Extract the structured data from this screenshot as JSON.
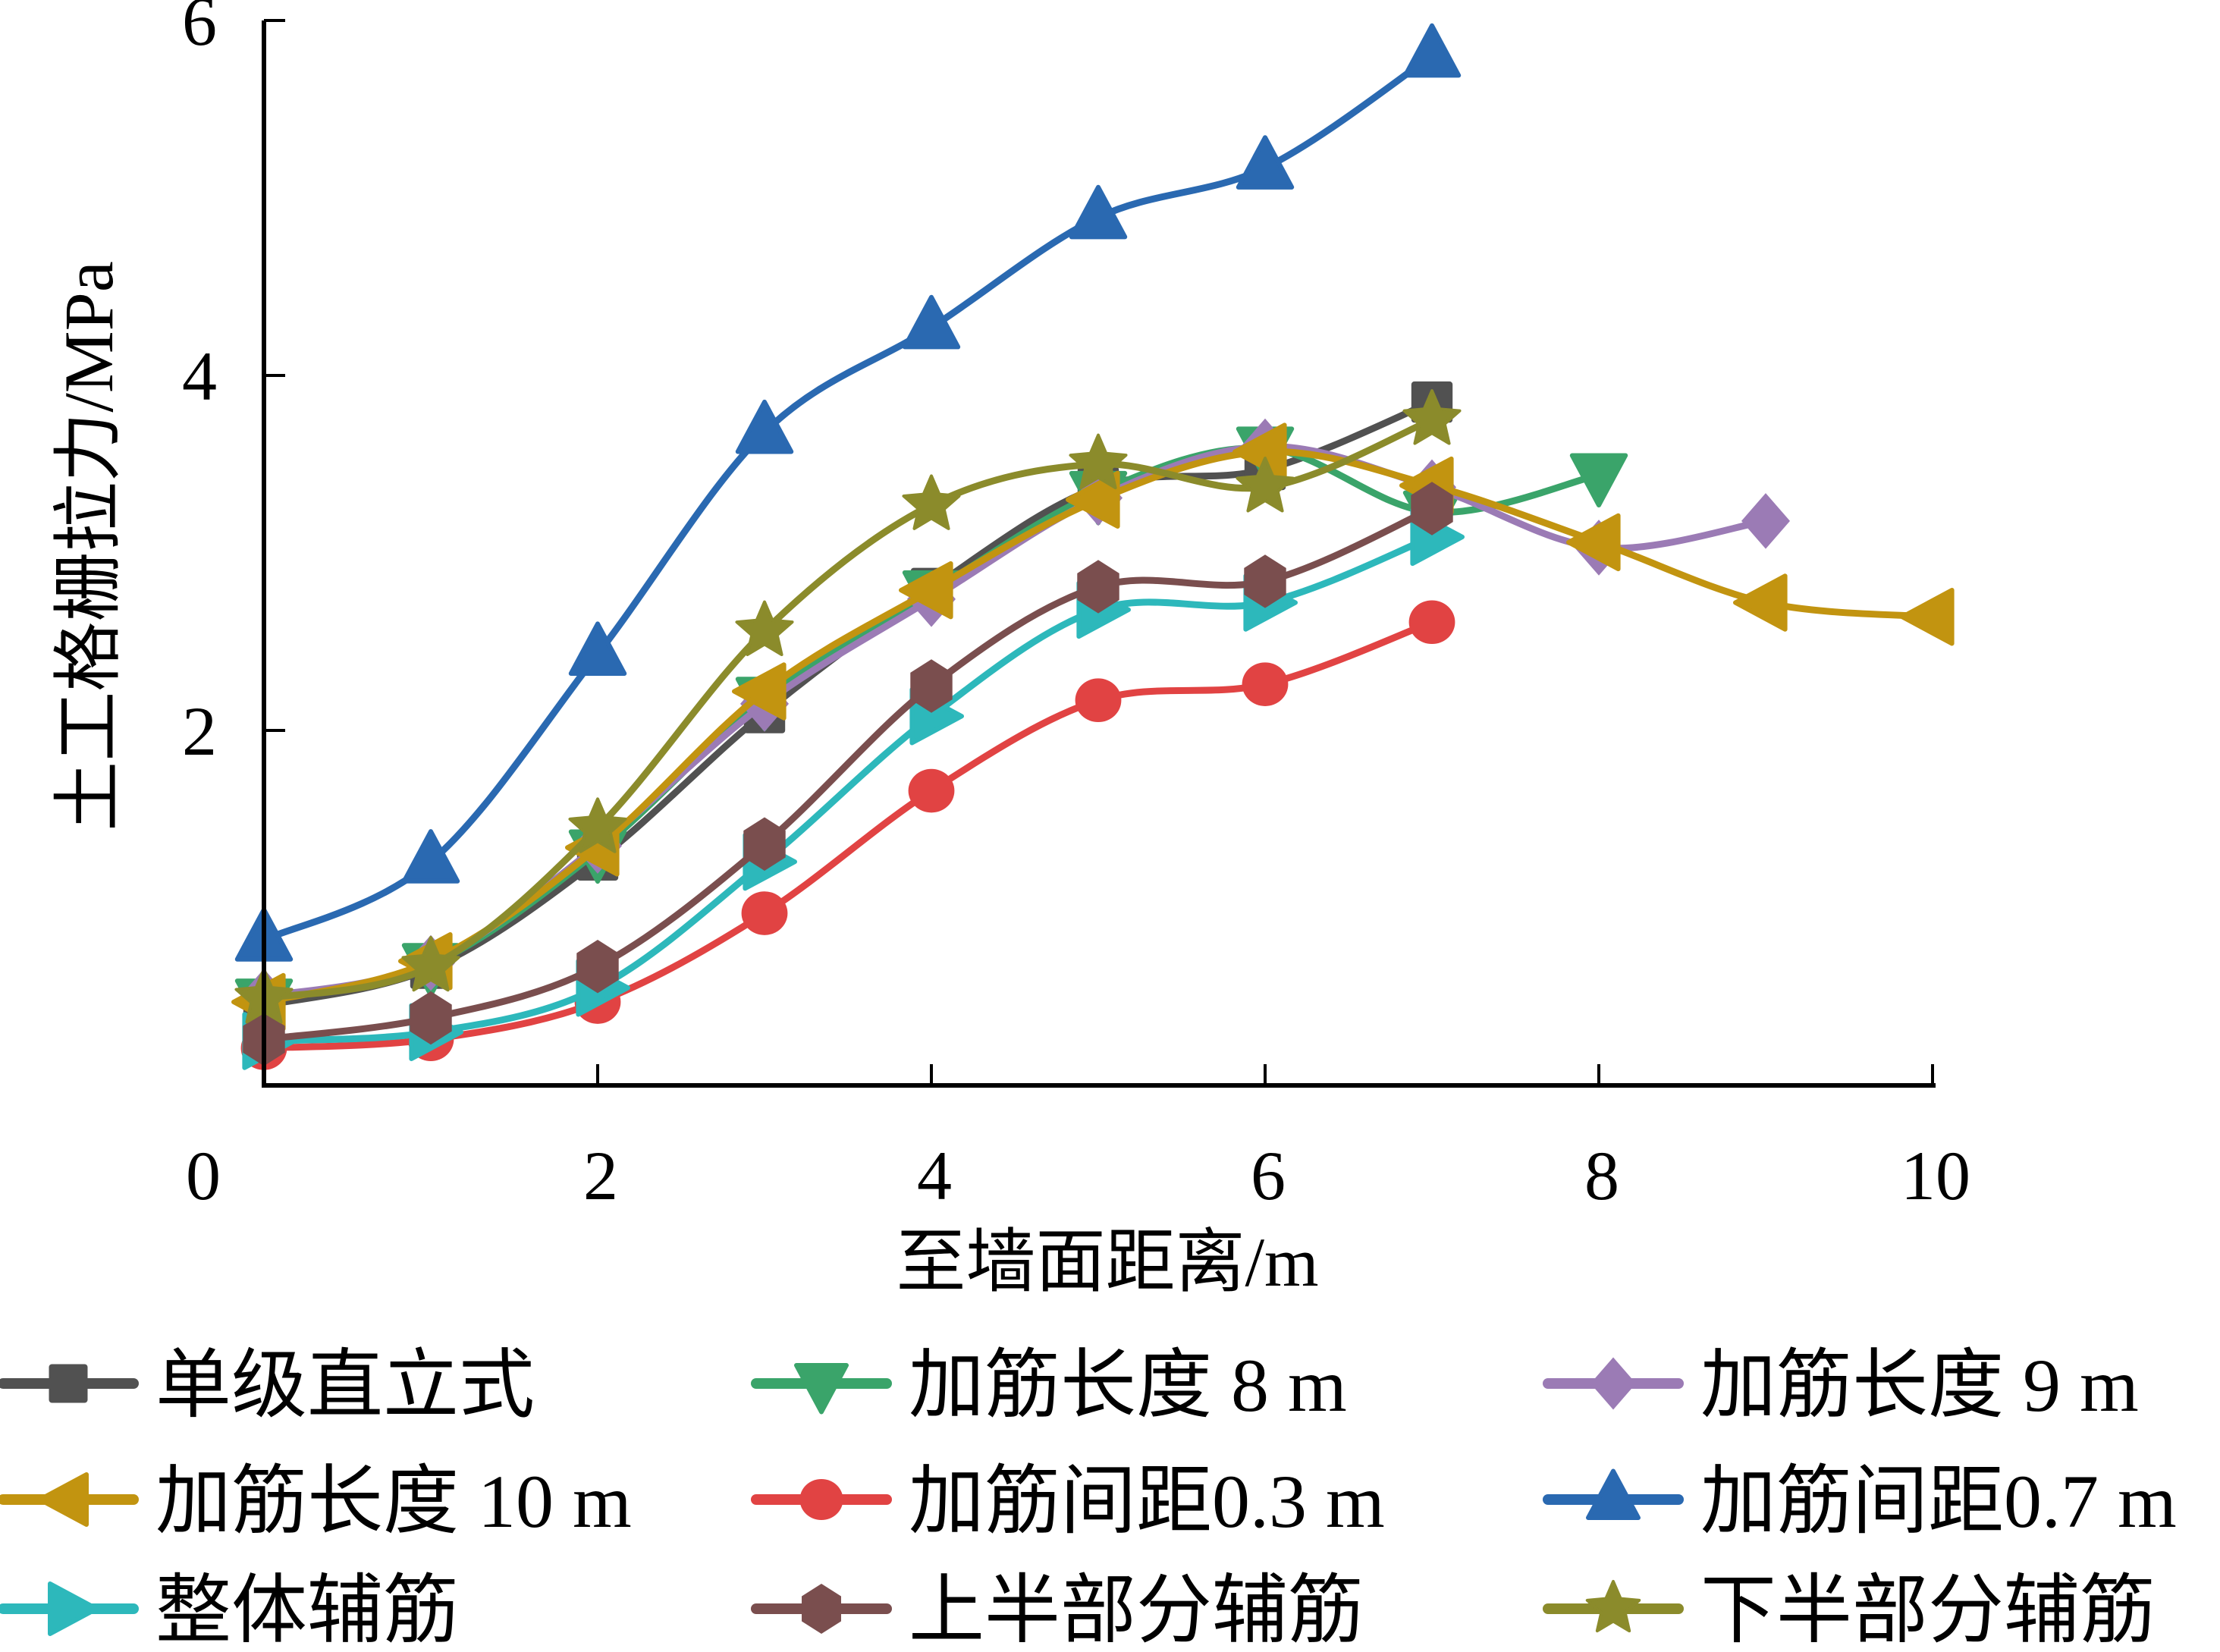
{
  "chart_data": {
    "type": "line",
    "title": "",
    "xlabel": "至墙面距离/m",
    "ylabel": "土工格栅拉力/MPa",
    "xlim": [
      0,
      10
    ],
    "ylim": [
      0,
      6
    ],
    "xticks": [
      "0",
      "2",
      "4",
      "6",
      "8",
      "10"
    ],
    "yticks": [
      "2",
      "4",
      "6"
    ],
    "grid": false,
    "smooth": true,
    "legend_position": "bottom",
    "series": [
      {
        "name": "单级直立式",
        "color": "#515151",
        "marker": "square",
        "x": [
          0,
          1,
          2,
          3,
          4,
          5,
          6,
          7
        ],
        "values": [
          0.45,
          0.66,
          1.27,
          2.1,
          2.8,
          3.37,
          3.47,
          3.85
        ]
      },
      {
        "name": "加筋长度 8 m",
        "color": "#3AA46A",
        "marker": "triangle-down",
        "x": [
          0,
          1,
          2,
          3,
          4,
          5,
          6,
          7,
          8
        ],
        "values": [
          0.48,
          0.68,
          1.32,
          2.18,
          2.78,
          3.34,
          3.59,
          3.23,
          3.44
        ]
      },
      {
        "name": "加筋长度 9 m",
        "color": "#9B7BB5",
        "marker": "diamond",
        "x": [
          0,
          1,
          2,
          3,
          4,
          5,
          6,
          7,
          8,
          9
        ],
        "values": [
          0.5,
          0.69,
          1.35,
          2.15,
          2.74,
          3.31,
          3.6,
          3.37,
          3.03,
          3.18
        ]
      },
      {
        "name": "加筋长度 10 m",
        "color": "#C29410",
        "marker": "triangle-left",
        "x": [
          0,
          1,
          2,
          3,
          4,
          5,
          6,
          7,
          8,
          9,
          10
        ],
        "values": [
          0.47,
          0.7,
          1.34,
          2.22,
          2.79,
          3.3,
          3.57,
          3.38,
          3.06,
          2.72,
          2.64
        ]
      },
      {
        "name": "加筋间距0.3 m",
        "color": "#E14343",
        "marker": "circle",
        "x": [
          0,
          1,
          2,
          3,
          4,
          5,
          6,
          7
        ],
        "values": [
          0.21,
          0.26,
          0.47,
          0.97,
          1.66,
          2.17,
          2.26,
          2.61
        ]
      },
      {
        "name": "加筋间距0.7 m",
        "color": "#2A69B1",
        "marker": "triangle-up",
        "x": [
          0,
          1,
          2,
          3,
          4,
          5,
          6,
          7
        ],
        "values": [
          0.82,
          1.26,
          2.43,
          3.68,
          4.27,
          4.89,
          5.17,
          5.8
        ]
      },
      {
        "name": "整体辅筋",
        "color": "#2DB8BB",
        "marker": "triangle-right",
        "x": [
          0,
          1,
          2,
          3,
          4,
          5,
          6,
          7
        ],
        "values": [
          0.25,
          0.3,
          0.55,
          1.26,
          2.08,
          2.68,
          2.72,
          3.09
        ]
      },
      {
        "name": "上半部分辅筋",
        "color": "#7A4E4E",
        "marker": "hexagon",
        "x": [
          0,
          1,
          2,
          3,
          4,
          5,
          6,
          7
        ],
        "values": [
          0.26,
          0.38,
          0.67,
          1.36,
          2.25,
          2.81,
          2.84,
          3.25
        ]
      },
      {
        "name": "下半部分辅筋",
        "color": "#8B8B2B",
        "marker": "star",
        "x": [
          0,
          1,
          2,
          3,
          4,
          5,
          6,
          7
        ],
        "values": [
          0.49,
          0.67,
          1.45,
          2.56,
          3.27,
          3.5,
          3.37,
          3.75
        ]
      }
    ]
  }
}
